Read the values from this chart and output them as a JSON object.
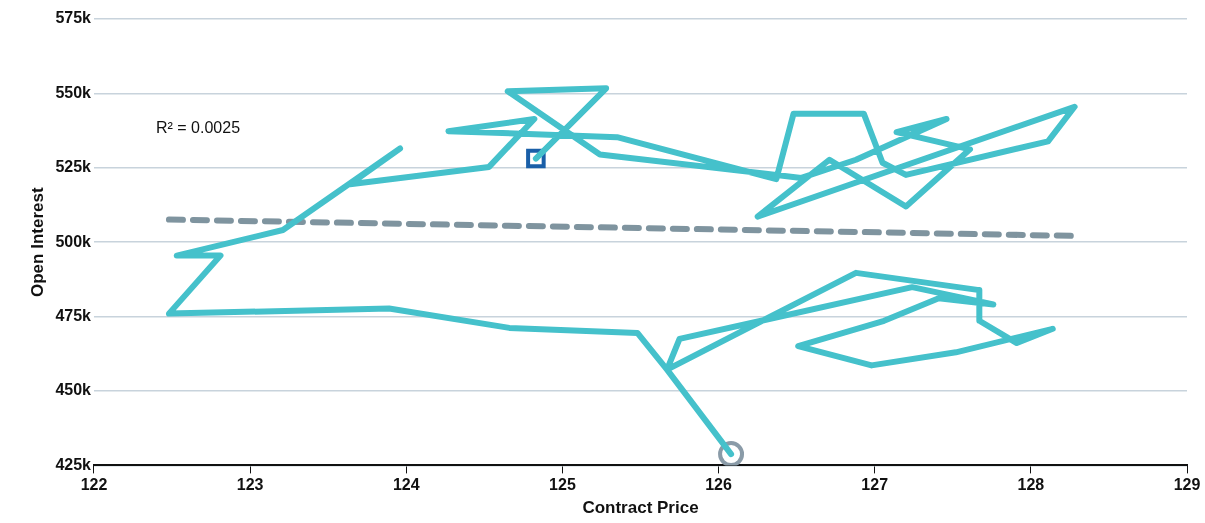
{
  "chart_data": {
    "type": "line",
    "xlabel": "Contract Price",
    "ylabel": "Open Interest",
    "annotations": [
      "R² = 0.0025"
    ],
    "xlim": [
      122,
      129
    ],
    "xticks": [
      122,
      123,
      124,
      125,
      126,
      127,
      128,
      129
    ],
    "ylim": [
      425,
      575
    ],
    "yticks": [
      {
        "value": 425,
        "label": "425k"
      },
      {
        "value": 450,
        "label": "450k"
      },
      {
        "value": 475,
        "label": "475k"
      },
      {
        "value": 500,
        "label": "500k"
      },
      {
        "value": 525,
        "label": "525k"
      },
      {
        "value": 550,
        "label": "550k"
      },
      {
        "value": 575,
        "label": "575k"
      }
    ],
    "grid": "y",
    "legend": false,
    "series": [
      {
        "color": "#45c1cb",
        "marker": "none",
        "line_style": "solid",
        "x": [
          126.08,
          125.67,
          126.88,
          127.67,
          127.67,
          127.91,
          128.14,
          127.52,
          126.98,
          126.51,
          127.06,
          127.41,
          127.76,
          127.24,
          125.75,
          125.67,
          125.48,
          124.66,
          123.89,
          122.48,
          122.81,
          122.53,
          123.21,
          123.96,
          123.64,
          124.53,
          124.82,
          124.27,
          125.35,
          126.37,
          126.48,
          126.93,
          127.05,
          127.2,
          128.11,
          128.28,
          126.25,
          126.71,
          127.2,
          127.61,
          127.14,
          127.46,
          126.88,
          126.53,
          125.24,
          124.65,
          125.28,
          124.83
        ],
        "values": [
          428.8,
          457.2,
          489.7,
          483.9,
          473.6,
          466.1,
          470.9,
          463,
          458.6,
          465.1,
          473.6,
          481.2,
          479.1,
          484.9,
          467.5,
          457.2,
          469.5,
          471.2,
          477.7,
          476,
          495.5,
          495.5,
          504.1,
          531.5,
          519.5,
          525.3,
          541.4,
          537.3,
          535.3,
          521.2,
          543.2,
          543.2,
          526.7,
          522.6,
          533.9,
          545.5,
          508.6,
          527.7,
          512,
          531.2,
          537,
          541.4,
          527.7,
          521.6,
          529.5,
          550.7,
          551.7,
          528.1
        ]
      },
      {
        "color": "#7f949f",
        "marker": "none",
        "line_style": "dashed",
        "x": [
          122.48,
          128.3
        ],
        "values": [
          507.6,
          502.1
        ]
      },
      {
        "type": "scatter",
        "color": "#8a9ba8",
        "marker": "circle",
        "x": [
          126.08
        ],
        "values": [
          428.8
        ]
      },
      {
        "type": "scatter",
        "color": "#1a5fa8",
        "marker": "square",
        "x": [
          124.83
        ],
        "values": [
          528.1
        ]
      }
    ]
  }
}
